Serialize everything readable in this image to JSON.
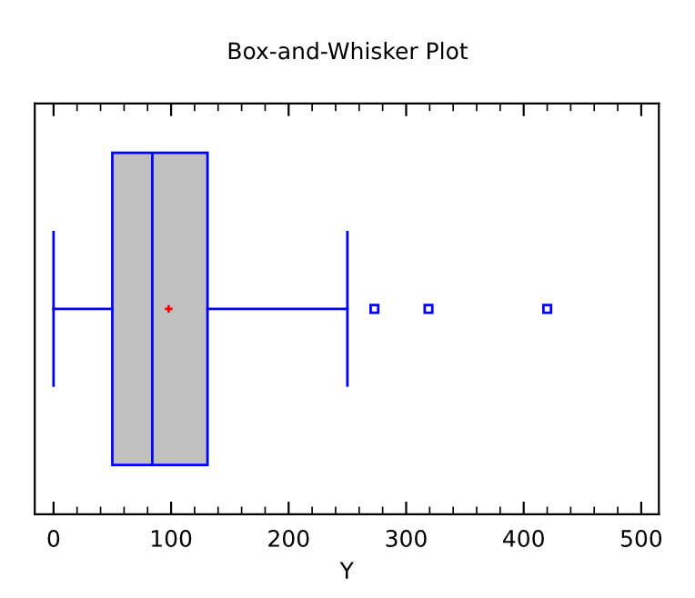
{
  "chart_data": {
    "type": "box",
    "orientation": "horizontal",
    "title": "Box-and-Whisker Plot",
    "xlabel": "Y",
    "categories": [
      null
    ],
    "boxes": [
      {
        "low": 0,
        "q1": 50,
        "median": 84,
        "q3": 131,
        "high": 250,
        "mean": 98,
        "outliers": [
          273,
          319,
          420
        ]
      }
    ],
    "color": "#c0c0c0",
    "xlim": [
      -16,
      515
    ],
    "xticks": [
      0,
      100,
      200,
      300,
      400,
      500
    ],
    "grid": false,
    "marker": "square"
  }
}
